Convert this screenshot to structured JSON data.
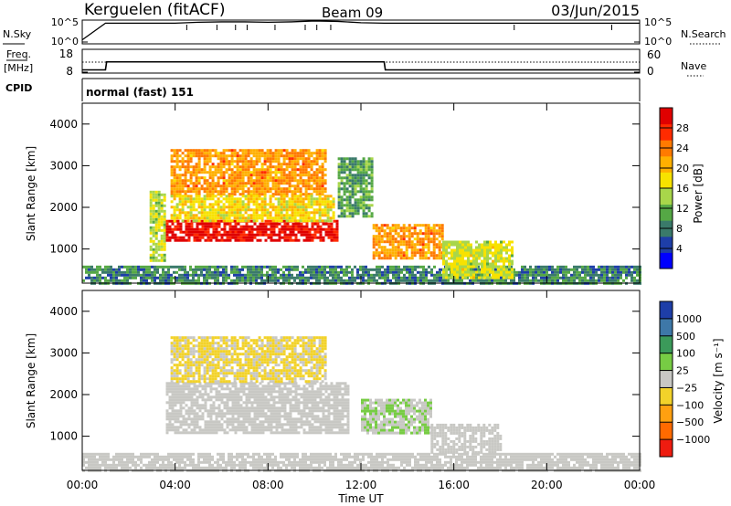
{
  "header": {
    "station": "Kerguelen (fitACF)",
    "beam": "Beam 09",
    "date": "03/Jun/2015"
  },
  "noise_panel": {
    "left_label": "N.Sky",
    "left_ticks": [
      "10^5",
      "10^0"
    ],
    "right_label": "N.Search",
    "right_ticks": [
      "10^5",
      "10^0"
    ]
  },
  "freq_panel": {
    "left_label_1": "Freq.",
    "left_label_2": "[MHz]",
    "left_ticks": [
      "18",
      "8"
    ],
    "right_label": "Nave",
    "right_ticks": [
      "60",
      "0"
    ]
  },
  "cpid_panel": {
    "label": "CPID",
    "text": "normal (fast) 151"
  },
  "x_axis": {
    "label": "Time UT",
    "ticks": [
      "00:00",
      "04:00",
      "08:00",
      "12:00",
      "16:00",
      "20:00",
      "00:00"
    ]
  },
  "power_panel": {
    "ylabel": "Slant Range [km]",
    "yticks": [
      "1000",
      "2000",
      "3000",
      "4000"
    ],
    "colorbar_label": "Power [dB]",
    "colorbar_ticks": [
      "4",
      "8",
      "12",
      "16",
      "20",
      "24",
      "28"
    ],
    "colors": [
      "#0000ff",
      "#1e3ea8",
      "#3a7a6a",
      "#55a845",
      "#a8d64a",
      "#f7e200",
      "#ffb000",
      "#ff7a00",
      "#ff2b00",
      "#e00000"
    ]
  },
  "velocity_panel": {
    "ylabel": "Slant Range [km]",
    "yticks": [
      "1000",
      "2000",
      "3000",
      "4000"
    ],
    "colorbar_label": "Velocity [m s⁻¹]",
    "colorbar_ticks": [
      "1000",
      "500",
      "100",
      "25",
      "−25",
      "−100",
      "−500",
      "−1000"
    ],
    "colors": [
      "#1e3ea8",
      "#3e78a8",
      "#3b9a5a",
      "#77cc44",
      "#c8c8c4",
      "#f2d22a",
      "#ffa010",
      "#ff6a00",
      "#ee1c10"
    ],
    "ground_scatter_color": "#c8c8c4"
  },
  "chart_data": [
    {
      "type": "line",
      "name": "noise",
      "x": [
        0,
        1,
        2,
        3,
        4,
        5,
        6,
        7,
        8,
        9,
        10,
        11,
        12,
        13,
        14,
        15,
        16,
        17,
        18,
        19,
        20,
        21,
        22,
        23,
        24
      ],
      "series": [
        {
          "values": [
            0.5,
            4.3,
            4.3,
            4.3,
            4.3,
            4.5,
            4.6,
            4.6,
            4.5,
            4.6,
            4.8,
            4.7,
            4.4,
            4.3,
            4.3,
            4.3,
            4.3,
            4.3,
            4.3,
            4.3,
            4.3,
            4.3,
            4.3,
            4.3,
            4.3
          ]
        }
      ],
      "ylim": [
        0,
        5
      ]
    },
    {
      "type": "line",
      "name": "frequency",
      "x": [
        0,
        1,
        1.05,
        13,
        13.05,
        24
      ],
      "series": [
        {
          "values": [
            9,
            9,
            12.5,
            12.5,
            9,
            9
          ]
        }
      ],
      "ylim": [
        8,
        18
      ]
    },
    {
      "type": "line",
      "name": "nave",
      "x": [
        0,
        24
      ],
      "series": [
        {
          "values": [
            28,
            28
          ]
        }
      ],
      "ylim": [
        0,
        60
      ]
    },
    {
      "type": "heatmap",
      "name": "power",
      "xlim": [
        0,
        24
      ],
      "ylim": [
        180,
        4500
      ],
      "zlim": [
        0,
        30
      ],
      "regions": [
        {
          "t0": 0,
          "t1": 24,
          "r0": 200,
          "r1": 600,
          "value": 8
        },
        {
          "t0": 2.9,
          "t1": 3.6,
          "r0": 700,
          "r1": 2400,
          "value": 14
        },
        {
          "t0": 3.6,
          "t1": 11.0,
          "r0": 1200,
          "r1": 1700,
          "value": 28
        },
        {
          "t0": 3.8,
          "t1": 10.5,
          "r0": 2300,
          "r1": 3400,
          "value": 21
        },
        {
          "t0": 3.8,
          "t1": 10.8,
          "r0": 1700,
          "r1": 2300,
          "value": 17
        },
        {
          "t0": 11.0,
          "t1": 12.5,
          "r0": 1800,
          "r1": 3200,
          "value": 10
        },
        {
          "t0": 12.5,
          "t1": 15.5,
          "r0": 800,
          "r1": 1600,
          "value": 21
        },
        {
          "t0": 15.5,
          "t1": 18.5,
          "r0": 300,
          "r1": 1200,
          "value": 15
        }
      ]
    },
    {
      "type": "heatmap",
      "name": "velocity",
      "xlim": [
        0,
        24
      ],
      "ylim": [
        180,
        4500
      ],
      "zlim": [
        -1000,
        1000
      ],
      "regions": [
        {
          "t0": 0,
          "t1": 24,
          "r0": 200,
          "r1": 600,
          "value": 0
        },
        {
          "t0": 3.6,
          "t1": 11.5,
          "r0": 1100,
          "r1": 2300,
          "value": 0
        },
        {
          "t0": 3.8,
          "t1": 10.5,
          "r0": 2300,
          "r1": 3400,
          "value": -150
        },
        {
          "t0": 12.0,
          "t1": 15.0,
          "r0": 1100,
          "r1": 1900,
          "value": 80
        },
        {
          "t0": 15.0,
          "t1": 18.0,
          "r0": 600,
          "r1": 1300,
          "value": 0
        }
      ]
    }
  ]
}
